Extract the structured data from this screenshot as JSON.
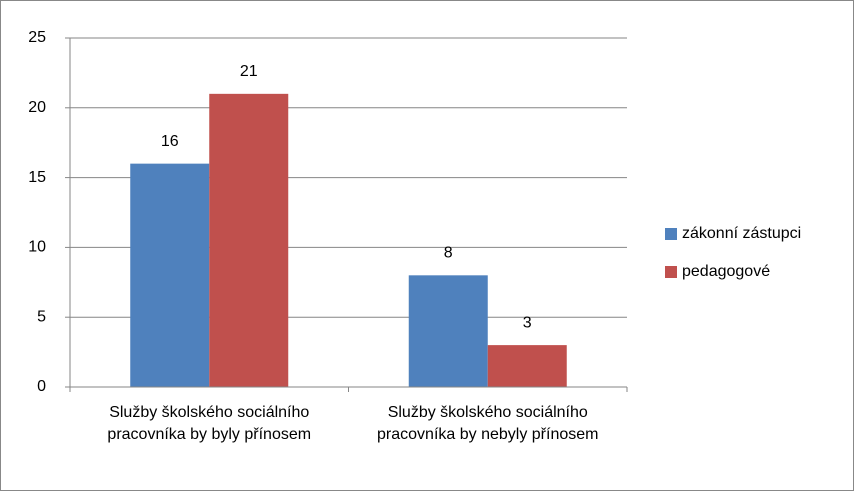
{
  "chart_data": {
    "type": "bar",
    "categories": [
      "Služby školského sociálního pracovníka by byly přínosem",
      "Služby školského sociálního pracovníka by nebyly přínosem"
    ],
    "series": [
      {
        "name": "zákonní zástupci",
        "color": "#4f81bd",
        "values": [
          16,
          8
        ]
      },
      {
        "name": "pedagogové",
        "color": "#c0504d",
        "values": [
          21,
          3
        ]
      }
    ],
    "ylim": [
      0,
      25
    ],
    "yticks": [
      0,
      5,
      10,
      15,
      20,
      25
    ],
    "grid": true,
    "legend": "right"
  }
}
